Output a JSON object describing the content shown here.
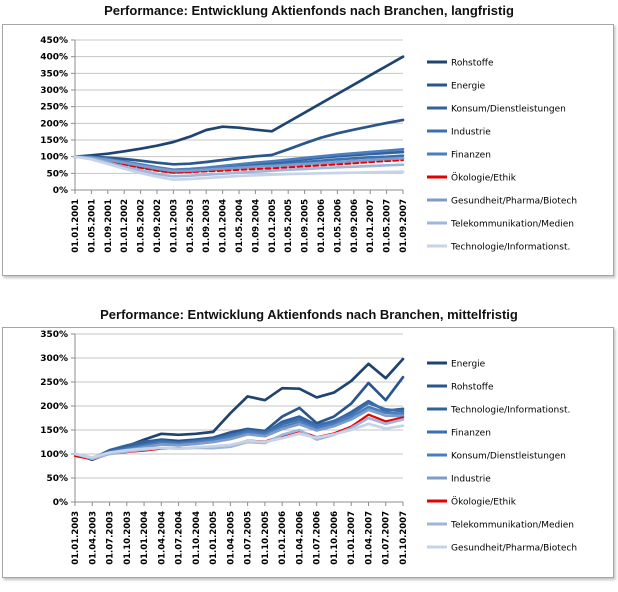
{
  "chart_data": [
    {
      "type": "line",
      "title": "Performance: Entwicklung Aktienfonds nach Branchen, langfristig",
      "ylim": [
        0,
        450
      ],
      "ytick_step": 50,
      "ytick_suffix": "%",
      "grid": true,
      "legend_position": "right",
      "categories": [
        "01.01.2001",
        "01.05.2001",
        "01.09.2001",
        "01.01.2002",
        "01.05.2002",
        "01.09.2002",
        "01.01.2003",
        "01.05.2003",
        "01.09.2003",
        "01.01.2004",
        "01.05.2004",
        "01.09.2004",
        "01.01.2005",
        "01.05.2005",
        "01.09.2005",
        "01.01.2006",
        "01.05.2006",
        "01.09.2006",
        "01.01.2007",
        "01.05.2007",
        "01.09.2007"
      ],
      "series": [
        {
          "name": "Rohstoffe",
          "color": "#1F4470",
          "dashed": false,
          "values": [
            100,
            104,
            109,
            116,
            124,
            133,
            144,
            160,
            180,
            190,
            187,
            181,
            176,
            204,
            232,
            260,
            288,
            316,
            344,
            372,
            400
          ]
        },
        {
          "name": "Energie",
          "color": "#2A568C",
          "dashed": false,
          "values": [
            100,
            100,
            97,
            93,
            88,
            82,
            77,
            79,
            84,
            90,
            96,
            101,
            105,
            122,
            140,
            157,
            170,
            181,
            191,
            201,
            210
          ]
        },
        {
          "name": "Konsum/Dienstleistungen",
          "color": "#31629E",
          "dashed": false,
          "values": [
            100,
            98,
            90,
            82,
            73,
            64,
            57,
            59,
            63,
            68,
            73,
            78,
            82,
            87,
            92,
            97,
            101,
            105,
            108,
            111,
            114
          ]
        },
        {
          "name": "Industrie",
          "color": "#3B6FB0",
          "dashed": false,
          "values": [
            100,
            97,
            88,
            79,
            69,
            60,
            53,
            55,
            59,
            63,
            68,
            72,
            76,
            80,
            84,
            88,
            92,
            95,
            98,
            100,
            103
          ]
        },
        {
          "name": "Finanzen",
          "color": "#4A7EBF",
          "dashed": false,
          "values": [
            100,
            99,
            93,
            85,
            77,
            68,
            61,
            63,
            67,
            72,
            77,
            82,
            86,
            91,
            96,
            101,
            106,
            110,
            114,
            118,
            122
          ]
        },
        {
          "name": "Ökologie/Ethik",
          "color": "#E80000",
          "dashed": true,
          "values": [
            100,
            96,
            86,
            76,
            67,
            58,
            52,
            54,
            56,
            58,
            61,
            63,
            65,
            68,
            71,
            74,
            77,
            80,
            84,
            87,
            90
          ]
        },
        {
          "name": "Gesundheit/Pharma/Biotech",
          "color": "#7D9CC9",
          "dashed": false,
          "values": [
            100,
            97,
            90,
            82,
            73,
            64,
            57,
            58,
            61,
            64,
            67,
            70,
            72,
            75,
            78,
            81,
            84,
            87,
            90,
            93,
            95
          ]
        },
        {
          "name": "Telekommunikation/Medien",
          "color": "#9FB6DA",
          "dashed": false,
          "values": [
            100,
            94,
            82,
            70,
            59,
            48,
            41,
            43,
            46,
            49,
            52,
            55,
            58,
            61,
            63,
            66,
            68,
            70,
            72,
            74,
            76
          ]
        },
        {
          "name": "Technologie/Informationst.",
          "color": "#C7D3E8",
          "dashed": false,
          "values": [
            100,
            92,
            78,
            64,
            51,
            40,
            31,
            33,
            36,
            39,
            42,
            44,
            46,
            48,
            49,
            50,
            51,
            52,
            53,
            54,
            55
          ]
        }
      ]
    },
    {
      "type": "line",
      "title": "Performance: Entwicklung Aktienfonds nach Branchen, mittelfristig",
      "ylim": [
        0,
        350
      ],
      "ytick_step": 50,
      "ytick_suffix": "%",
      "grid": true,
      "legend_position": "right",
      "categories": [
        "01.01.2003",
        "01.04.2003",
        "01.07.2003",
        "01.10.2003",
        "01.01.2004",
        "01.04.2004",
        "01.07.2004",
        "01.10.2004",
        "01.01.2005",
        "01.04.2005",
        "01.07.2005",
        "01.10.2005",
        "01.01.2006",
        "01.04.2006",
        "01.07.2006",
        "01.10.2006",
        "01.01.2007",
        "01.04.2007",
        "01.07.2007",
        "01.10.2007"
      ],
      "series": [
        {
          "name": "Energie",
          "color": "#1F4470",
          "dashed": false,
          "values": [
            100,
            90,
            105,
            116,
            130,
            142,
            140,
            142,
            146,
            185,
            220,
            212,
            237,
            236,
            218,
            228,
            252,
            288,
            258,
            298
          ]
        },
        {
          "name": "Rohstoffe",
          "color": "#2A568C",
          "dashed": false,
          "values": [
            100,
            88,
            102,
            112,
            125,
            130,
            127,
            130,
            134,
            145,
            152,
            148,
            178,
            196,
            164,
            178,
            205,
            248,
            212,
            260
          ]
        },
        {
          "name": "Technologie/Informationst.",
          "color": "#31629E",
          "dashed": false,
          "values": [
            100,
            90,
            108,
            118,
            126,
            128,
            123,
            126,
            129,
            136,
            150,
            143,
            167,
            178,
            160,
            168,
            187,
            210,
            190,
            194
          ]
        },
        {
          "name": "Finanzen",
          "color": "#3B6FB0",
          "dashed": false,
          "values": [
            100,
            92,
            105,
            112,
            120,
            126,
            123,
            127,
            131,
            139,
            149,
            145,
            162,
            172,
            159,
            169,
            183,
            206,
            193,
            189
          ]
        },
        {
          "name": "Konsum/Dienstleistungen",
          "color": "#4A7EBF",
          "dashed": false,
          "values": [
            100,
            91,
            103,
            110,
            117,
            123,
            121,
            124,
            128,
            135,
            145,
            141,
            156,
            166,
            154,
            163,
            177,
            198,
            186,
            184
          ]
        },
        {
          "name": "Industrie",
          "color": "#7D9CC9",
          "dashed": false,
          "values": [
            100,
            90,
            101,
            108,
            114,
            120,
            118,
            121,
            125,
            131,
            141,
            137,
            152,
            162,
            149,
            158,
            172,
            192,
            180,
            179
          ]
        },
        {
          "name": "Ökologie/Ethik",
          "color": "#E80000",
          "dashed": false,
          "values": [
            96,
            89,
            100,
            104,
            107,
            111,
            112,
            113,
            112,
            118,
            128,
            126,
            138,
            148,
            135,
            143,
            157,
            182,
            168,
            176
          ]
        },
        {
          "name": "Telekommunikation/Medien",
          "color": "#9FB6DA",
          "dashed": false,
          "values": [
            100,
            90,
            100,
            105,
            109,
            113,
            111,
            113,
            112,
            115,
            125,
            123,
            140,
            150,
            130,
            140,
            154,
            175,
            163,
            172
          ]
        },
        {
          "name": "Gesundheit/Pharma/Biotech",
          "color": "#C7D3E8",
          "dashed": false,
          "values": [
            100,
            93,
            103,
            108,
            111,
            113,
            111,
            114,
            116,
            119,
            127,
            125,
            133,
            142,
            134,
            141,
            150,
            163,
            153,
            159
          ]
        }
      ]
    }
  ],
  "style": {
    "gridline_color": "#C4C4C4",
    "axis_color": "#8C8C8C",
    "panel_border_color": "#A6A6A6",
    "red_series_color": "#E80000"
  }
}
